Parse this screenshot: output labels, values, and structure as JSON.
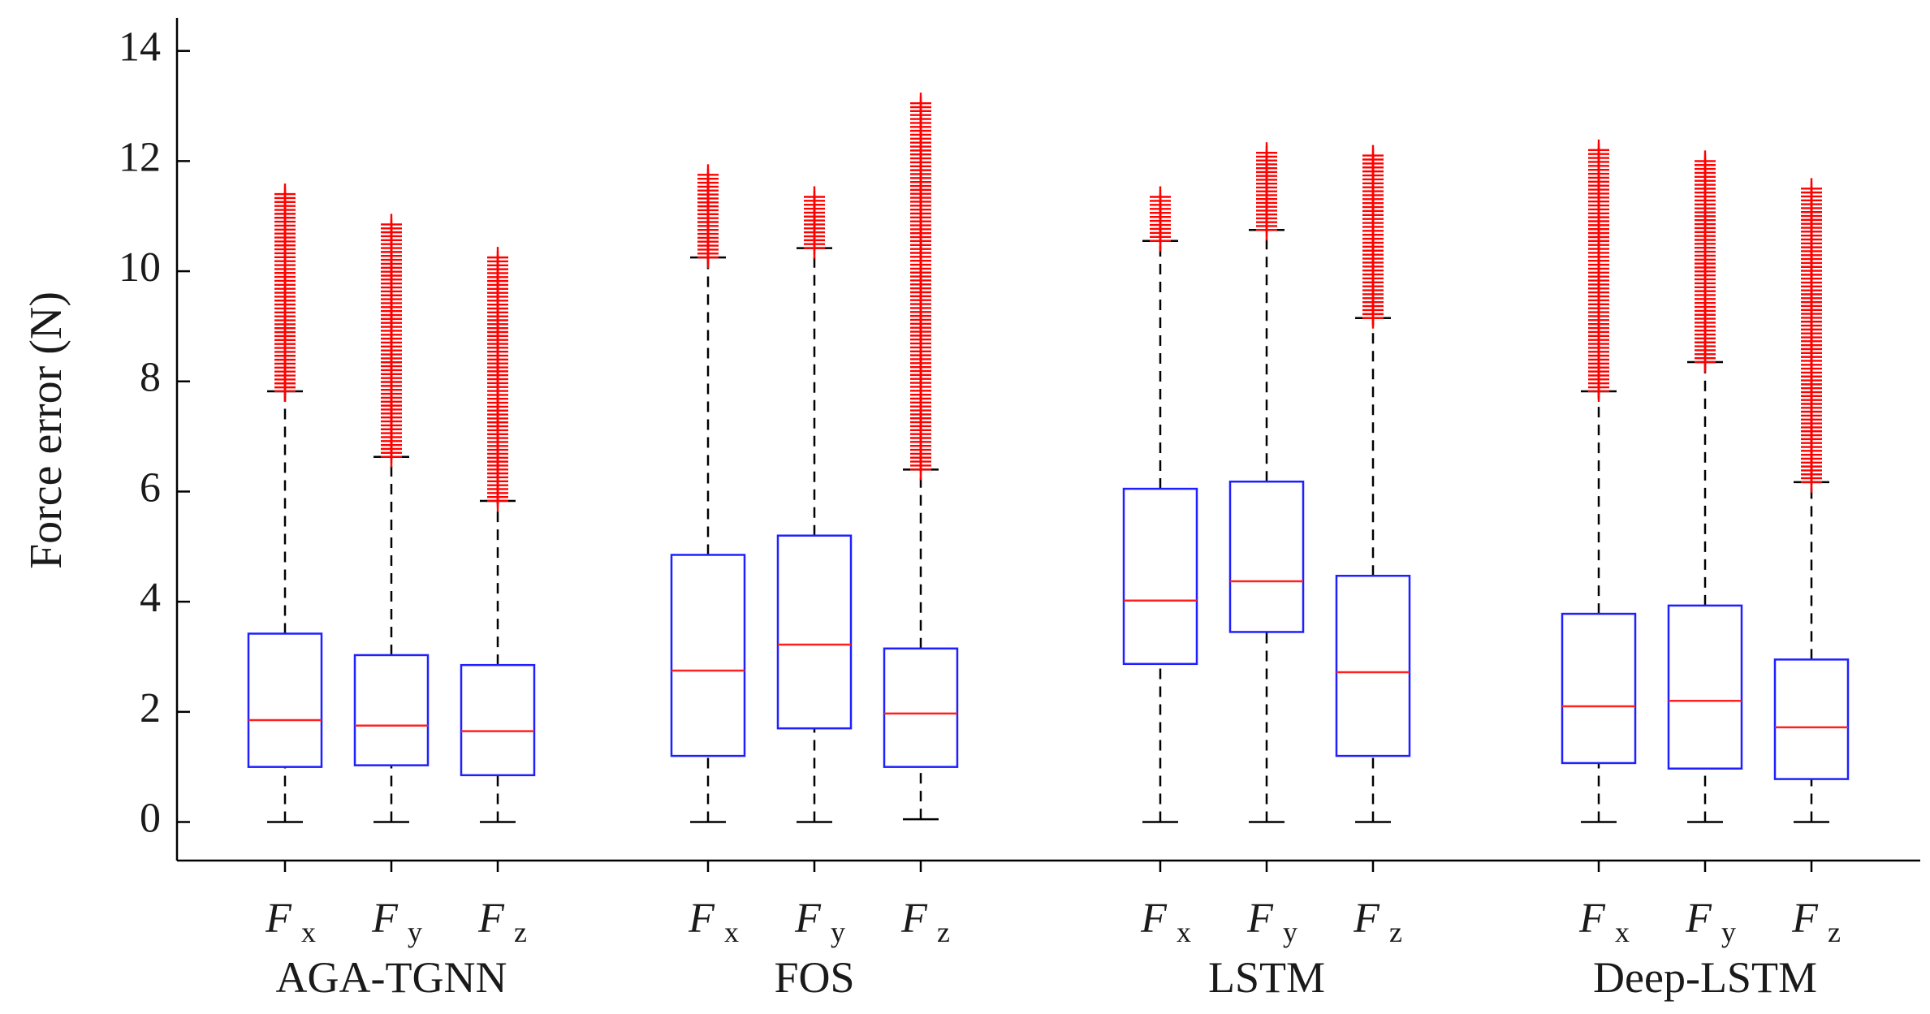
{
  "chart_data": {
    "type": "boxplot",
    "ylabel": "Force error (N)",
    "ylim": [
      -0.7,
      14.6
    ],
    "yticks": [
      0,
      2,
      4,
      6,
      8,
      10,
      12,
      14
    ],
    "colors": {
      "box": "#1f1fff",
      "median": "#ff2020",
      "outlier": "#ff0000",
      "whisker": "#000000"
    },
    "groups": [
      {
        "name": "AGA-TGNN",
        "boxes": [
          {
            "label_main": "F",
            "label_sub": "x",
            "q1": 1.0,
            "median": 1.85,
            "q3": 3.42,
            "whisker_low": 0.0,
            "whisker_high": 7.82,
            "outlier_min": 7.82,
            "outlier_max": 11.4
          },
          {
            "label_main": "F",
            "label_sub": "y",
            "q1": 1.03,
            "median": 1.75,
            "q3": 3.03,
            "whisker_low": 0.0,
            "whisker_high": 6.63,
            "outlier_min": 6.63,
            "outlier_max": 10.85
          },
          {
            "label_main": "F",
            "label_sub": "z",
            "q1": 0.85,
            "median": 1.65,
            "q3": 2.85,
            "whisker_low": 0.0,
            "whisker_high": 5.83,
            "outlier_min": 5.83,
            "outlier_max": 10.25
          }
        ]
      },
      {
        "name": "FOS",
        "boxes": [
          {
            "label_main": "F",
            "label_sub": "x",
            "q1": 1.2,
            "median": 2.75,
            "q3": 4.85,
            "whisker_low": 0.0,
            "whisker_high": 10.25,
            "outlier_min": 10.25,
            "outlier_max": 11.75
          },
          {
            "label_main": "F",
            "label_sub": "y",
            "q1": 1.7,
            "median": 3.22,
            "q3": 5.2,
            "whisker_low": 0.0,
            "whisker_high": 10.42,
            "outlier_min": 10.42,
            "outlier_max": 11.35
          },
          {
            "label_main": "F",
            "label_sub": "z",
            "q1": 1.0,
            "median": 1.97,
            "q3": 3.15,
            "whisker_low": 0.05,
            "whisker_high": 6.4,
            "outlier_min": 6.4,
            "outlier_max": 13.05
          }
        ]
      },
      {
        "name": "LSTM",
        "boxes": [
          {
            "label_main": "F",
            "label_sub": "x",
            "q1": 2.87,
            "median": 4.02,
            "q3": 6.05,
            "whisker_low": 0.0,
            "whisker_high": 10.55,
            "outlier_min": 10.55,
            "outlier_max": 11.35
          },
          {
            "label_main": "F",
            "label_sub": "y",
            "q1": 3.45,
            "median": 4.37,
            "q3": 6.18,
            "whisker_low": 0.0,
            "whisker_high": 10.75,
            "outlier_min": 10.75,
            "outlier_max": 12.15
          },
          {
            "label_main": "F",
            "label_sub": "z",
            "q1": 1.2,
            "median": 2.72,
            "q3": 4.47,
            "whisker_low": 0.0,
            "whisker_high": 9.15,
            "outlier_min": 9.15,
            "outlier_max": 12.1
          }
        ]
      },
      {
        "name": "Deep-LSTM",
        "boxes": [
          {
            "label_main": "F",
            "label_sub": "x",
            "q1": 1.07,
            "median": 2.1,
            "q3": 3.78,
            "whisker_low": 0.0,
            "whisker_high": 7.82,
            "outlier_min": 7.82,
            "outlier_max": 12.2
          },
          {
            "label_main": "F",
            "label_sub": "y",
            "q1": 0.97,
            "median": 2.2,
            "q3": 3.93,
            "whisker_low": 0.0,
            "whisker_high": 8.35,
            "outlier_min": 8.35,
            "outlier_max": 12.0
          },
          {
            "label_main": "F",
            "label_sub": "z",
            "q1": 0.78,
            "median": 1.72,
            "q3": 2.95,
            "whisker_low": 0.0,
            "whisker_high": 6.17,
            "outlier_min": 6.17,
            "outlier_max": 11.5
          }
        ]
      }
    ]
  }
}
